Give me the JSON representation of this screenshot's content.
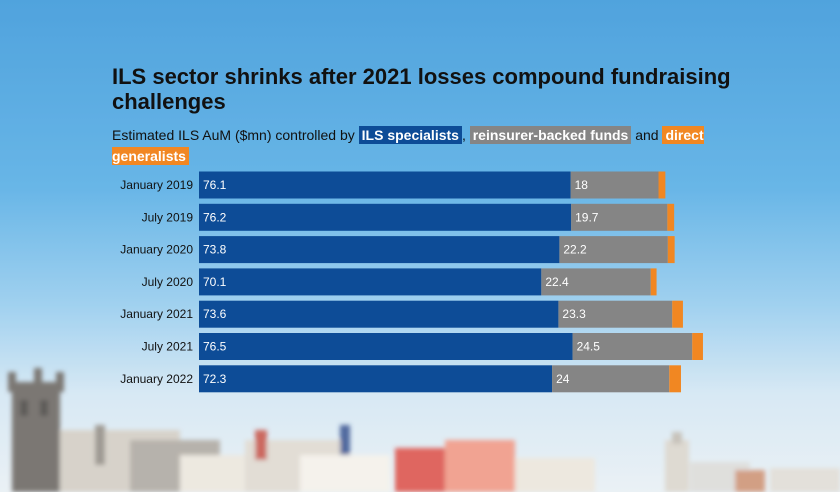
{
  "title": "ILS sector shrinks after 2021 losses compound fundraising challenges",
  "subtitle": {
    "prefix": "Estimated ILS AuM ($mn) controlled by ",
    "ils": "ILS specialists",
    "sep1": ",",
    "reinsurer": "reinsurer-backed funds",
    "and": " and ",
    "direct": "direct generalists"
  },
  "colors": {
    "ils": "#0d4c97",
    "reinsurer": "#858585",
    "direct": "#f18722"
  },
  "chart_data": {
    "type": "bar",
    "orientation": "horizontal",
    "stacked": true,
    "title": "ILS sector shrinks after 2021 losses compound fundraising challenges",
    "subtitle": "Estimated ILS AuM ($mn) controlled by ILS specialists, reinsurer-backed funds and direct generalists",
    "categories": [
      "January 2019",
      "July 2019",
      "January 2020",
      "July 2020",
      "January 2021",
      "July 2021",
      "January 2022"
    ],
    "series": [
      {
        "name": "ILS specialists",
        "values": [
          76.1,
          76.2,
          73.8,
          70.1,
          73.6,
          76.5,
          72.3
        ],
        "labels": [
          "76.1",
          "76.2",
          "73.8",
          "70.1",
          "73.6",
          "76.5",
          "72.3"
        ]
      },
      {
        "name": "reinsurer-backed funds",
        "values": [
          18,
          19.7,
          22.2,
          22.4,
          23.3,
          24.5,
          24
        ],
        "labels": [
          "18",
          "19.7",
          "22.2",
          "22.4",
          "23.3",
          "24.5",
          "24"
        ]
      },
      {
        "name": "direct generalists",
        "values": [
          1.4,
          1.4,
          1.4,
          1.2,
          2.2,
          2.2,
          2.4
        ]
      }
    ],
    "xlim": [
      0,
      120
    ],
    "grid": false,
    "legend": "inline in subtitle"
  }
}
